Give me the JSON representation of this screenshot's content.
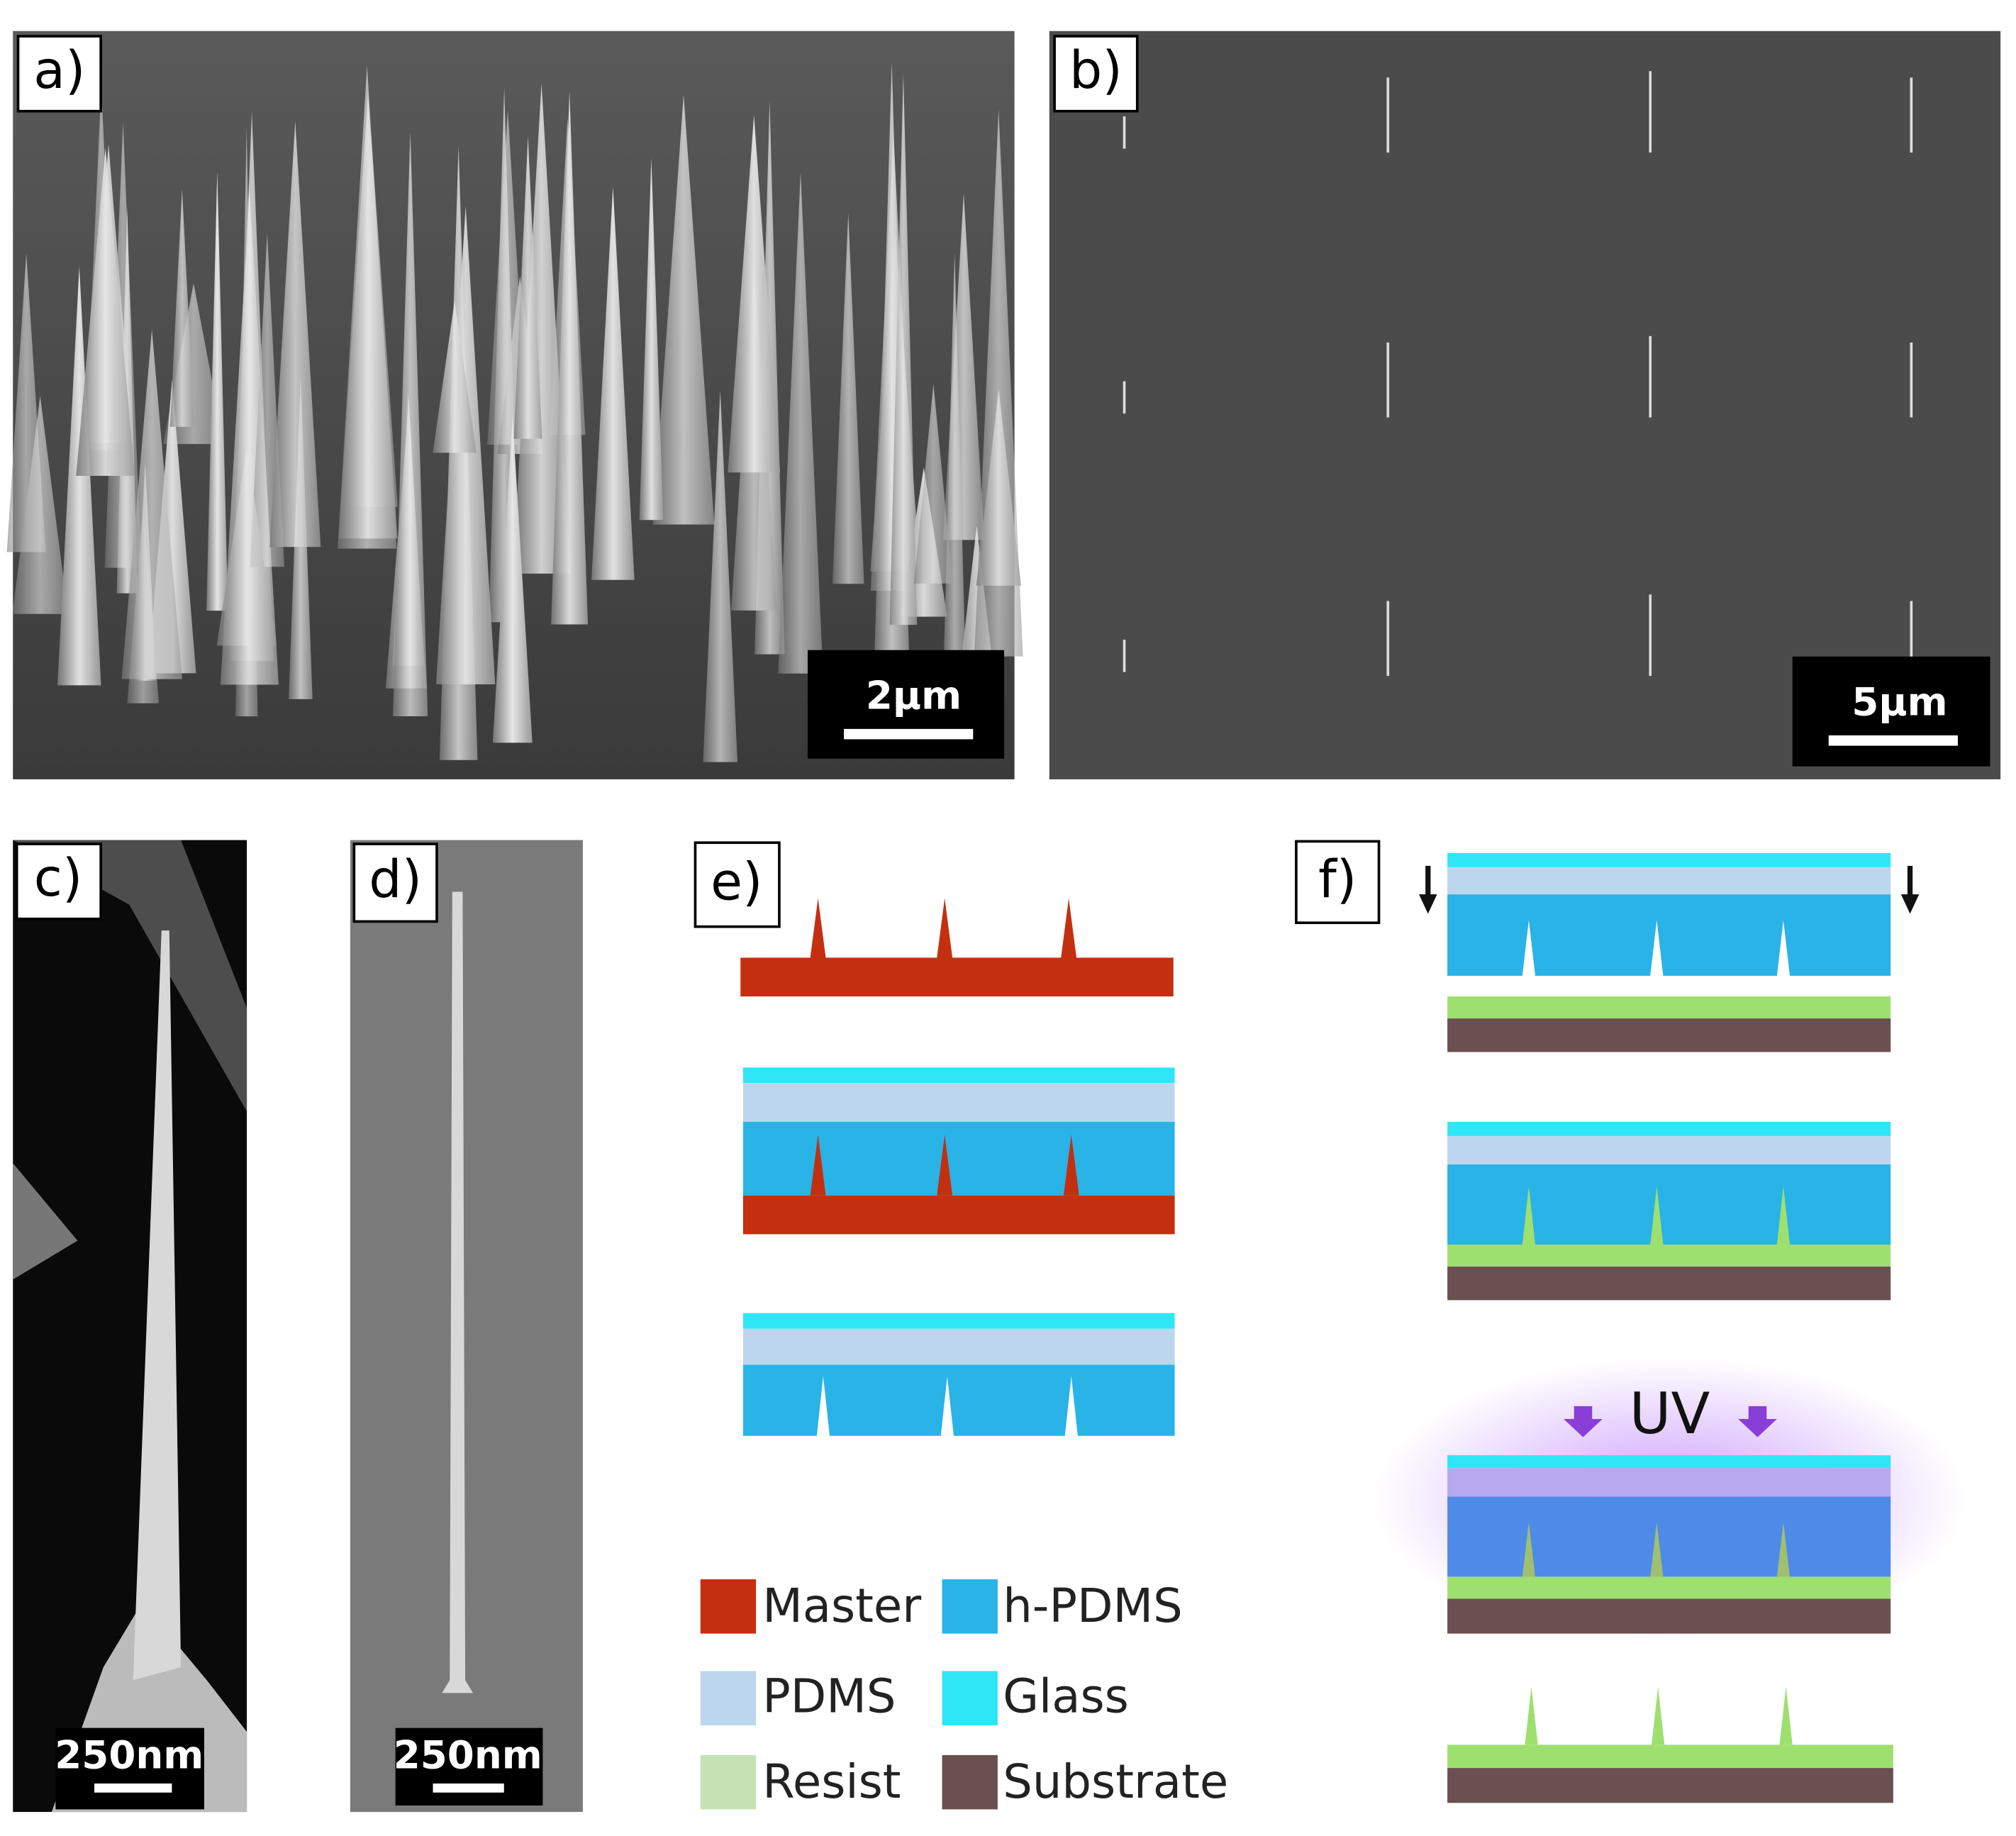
{
  "panels": [
    {
      "label": "a)",
      "scale_bar": "2µm"
    },
    {
      "label": "b)",
      "scale_bar": "5µm"
    },
    {
      "label": "c)",
      "scale_bar": "250nm"
    },
    {
      "label": "d)",
      "scale_bar": "250nm"
    },
    {
      "label": "e)"
    },
    {
      "label": "f)",
      "annotation": "UV"
    }
  ],
  "legend": [
    "Master",
    "h-PDMS",
    "PDMS",
    "Glass",
    "Resist",
    "Substrate"
  ]
}
